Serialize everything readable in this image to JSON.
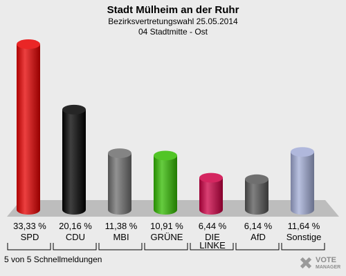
{
  "chart_data": {
    "type": "bar",
    "title": "Stadt Mülheim an der Ruhr",
    "subtitle": "Bezirksvertretungswahl 25.05.2014",
    "subtitle2": "04 Stadtmitte - Ost",
    "categories": [
      "SPD",
      "CDU",
      "MBI",
      "GRÜNE",
      "DIE LINKE",
      "AfD",
      "Sonstige"
    ],
    "values": [
      33.33,
      20.16,
      11.38,
      10.91,
      6.44,
      6.14,
      11.64
    ],
    "value_labels": [
      "33,33 %",
      "20,16 %",
      "11,38 %",
      "10,91 %",
      "6,44 %",
      "6,14 %",
      "11,64 %"
    ],
    "colors": [
      "#e60000",
      "#000000",
      "#6e6e6e",
      "#33bb00",
      "#cc0044",
      "#555555",
      "#a2acd6"
    ],
    "ylim": [
      0,
      35
    ]
  },
  "footer": "5 von 5 Schnellmeldungen",
  "logo": {
    "line1": "VOTE",
    "line2": "MANAGER"
  }
}
